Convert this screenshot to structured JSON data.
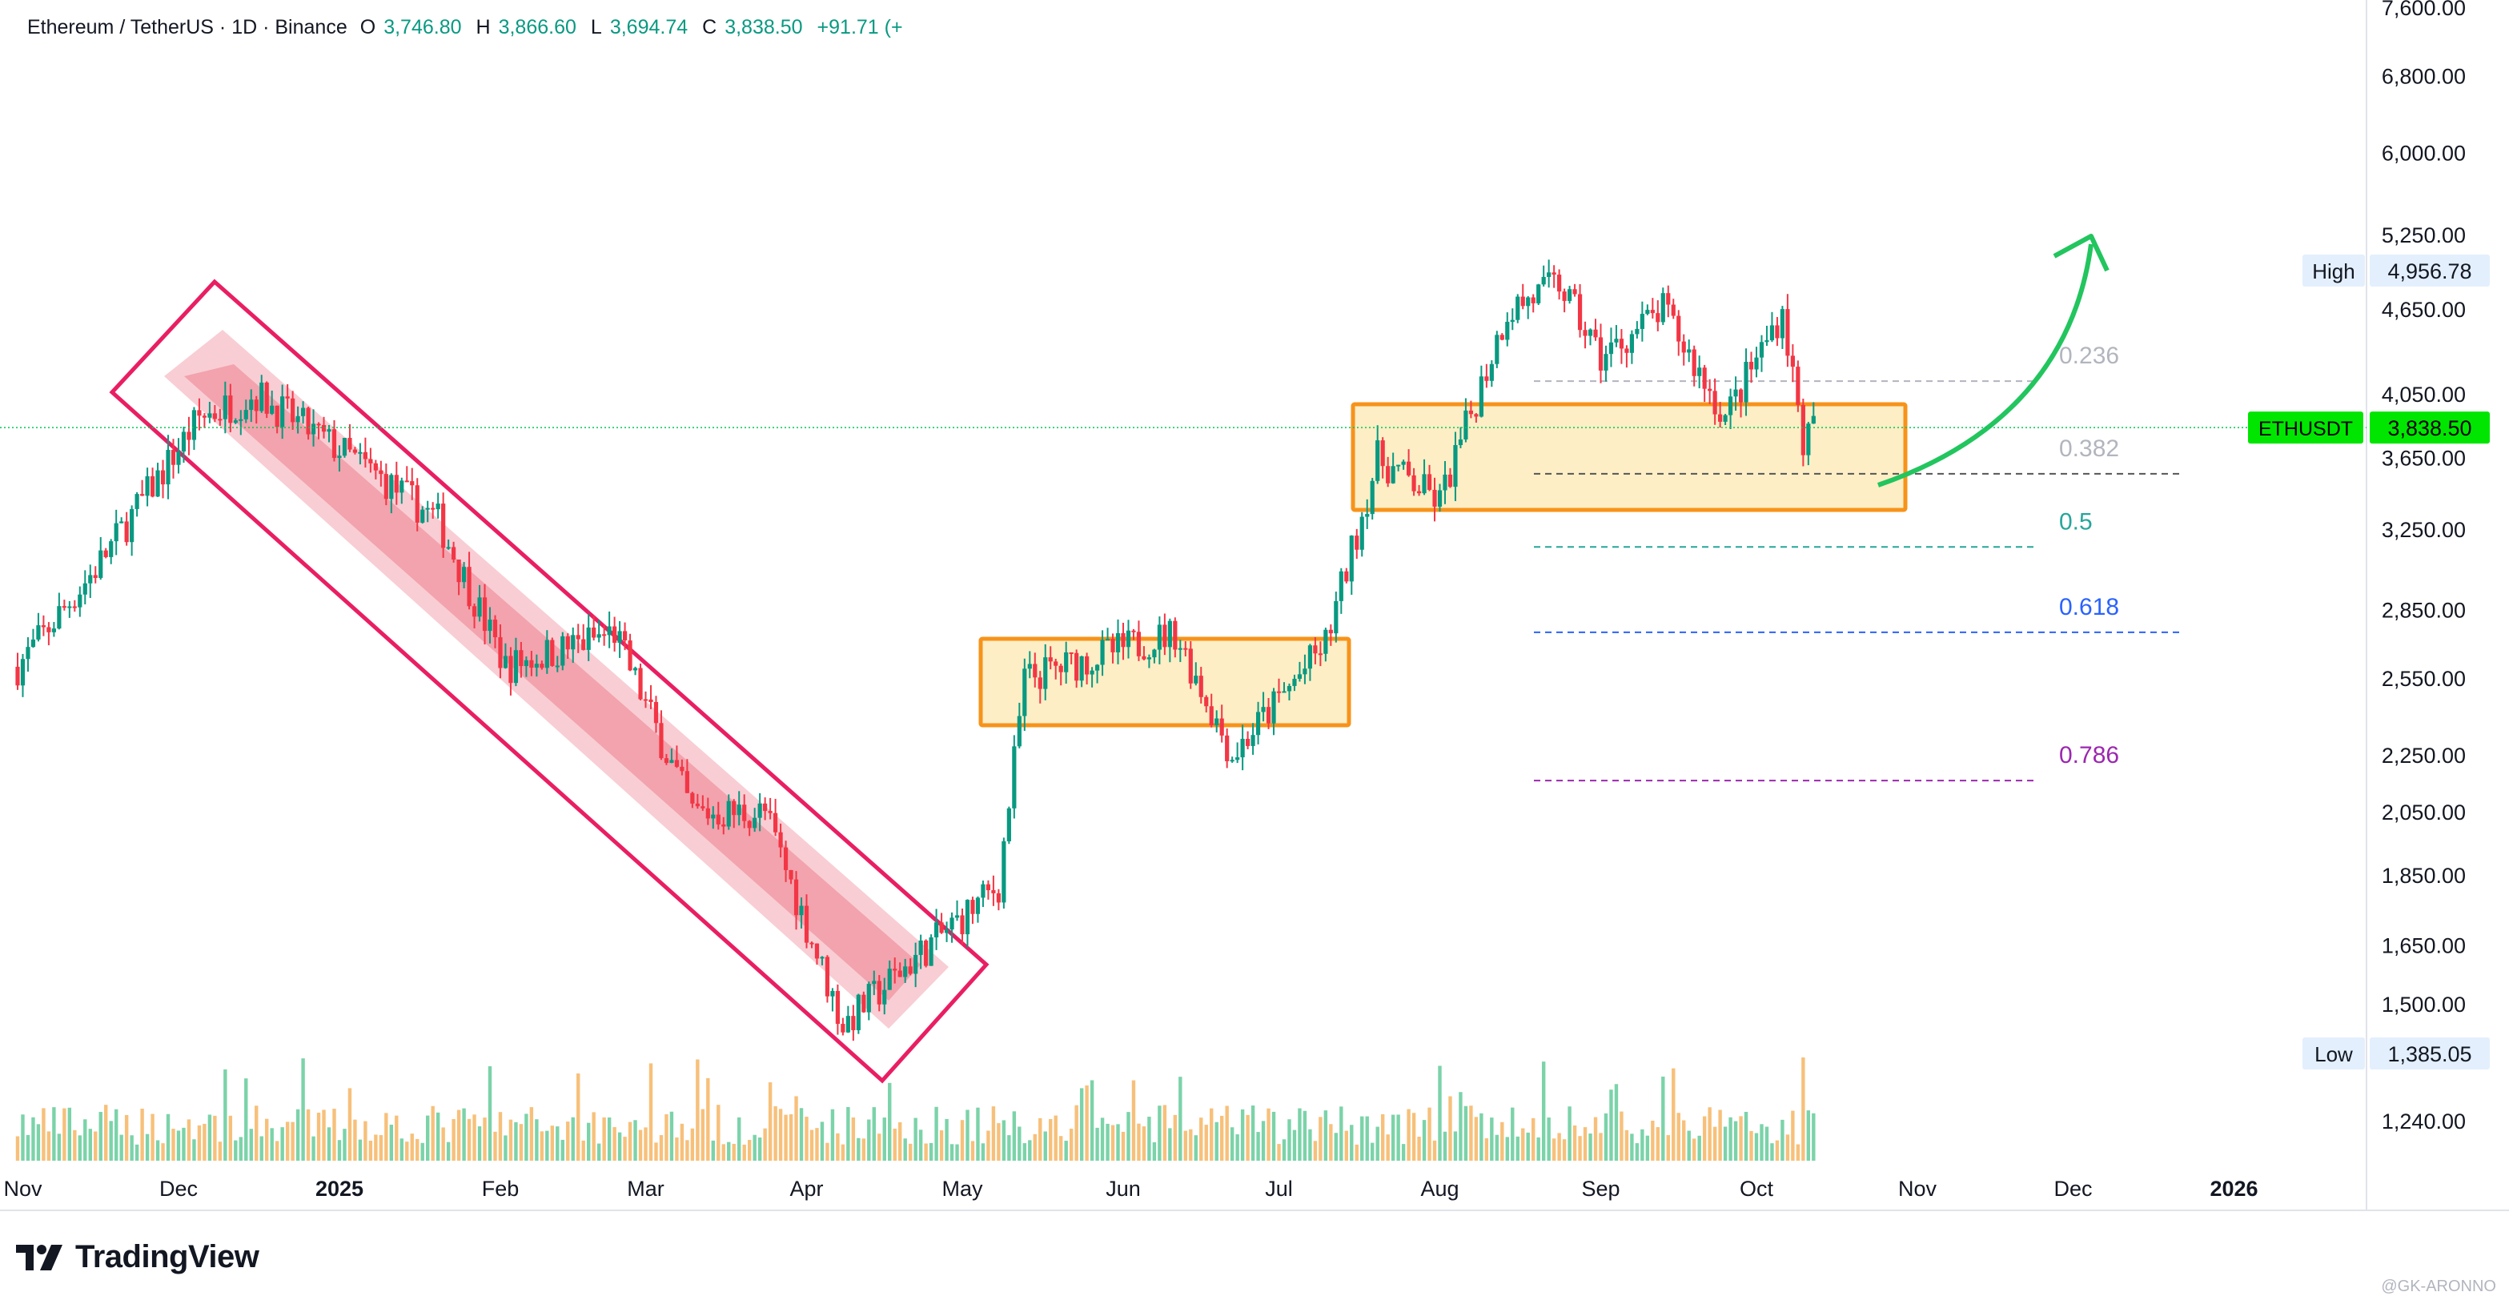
{
  "header": {
    "symbol": "Ethereum / TetherUS · 1D · Binance",
    "open_label": "O",
    "open": "3,746.80",
    "high_label": "H",
    "high": "3,866.60",
    "low_label": "L",
    "low": "3,694.74",
    "close_label": "C",
    "close": "3,838.50",
    "change": "+91.71 (+"
  },
  "brand": {
    "name": "TradingView"
  },
  "watermark": "@GK-ARONNO",
  "colors": {
    "up": "#089981",
    "down": "#f23645",
    "volume_up": "#7bd3a9",
    "volume_down": "#f7c07a",
    "orange": "#f7931a",
    "channel": "#e91e63",
    "arrow": "#22c55e",
    "last_price": "#00e600"
  },
  "chart_data": {
    "type": "candlestick",
    "symbol": "ETHUSDT",
    "price_axis": {
      "scale": "log",
      "ticks": [
        "7,600.00",
        "6,800.00",
        "6,000.00",
        "5,250.00",
        "4,650.00",
        "4,050.00",
        "3,650.00",
        "3,250.00",
        "2,850.00",
        "2,550.00",
        "2,250.00",
        "2,050.00",
        "1,850.00",
        "1,650.00",
        "1,500.00",
        "1,240.00"
      ]
    },
    "time_axis": {
      "ticks": [
        "Nov",
        "Dec",
        "2025",
        "Feb",
        "Mar",
        "Apr",
        "May",
        "Jun",
        "Jul",
        "Aug",
        "Sep",
        "Oct",
        "Nov",
        "Dec",
        "2026"
      ]
    },
    "markers": {
      "high": {
        "label": "High",
        "value": "4,956.78"
      },
      "low": {
        "label": "Low",
        "value": "1,385.05"
      },
      "last": {
        "label": "ETHUSDT",
        "value": "3,838.50"
      }
    },
    "fib_levels": [
      {
        "label": "0.236",
        "price": 4140,
        "color": "#b2b5be"
      },
      {
        "label": "0.382",
        "price": 3560,
        "color": "#b2b5be"
      },
      {
        "label": "0.5",
        "price": 3160,
        "color": "#26a69a"
      },
      {
        "label": "0.618",
        "price": 2750,
        "color": "#2962ff"
      },
      {
        "label": "0.786",
        "price": 2160,
        "color": "#9c27b0"
      }
    ],
    "anchors": [
      {
        "date": "2024-10-31",
        "price": 2600
      },
      {
        "date": "2024-11-15",
        "price": 3050
      },
      {
        "date": "2024-12-05",
        "price": 3900
      },
      {
        "date": "2024-12-16",
        "price": 4050
      },
      {
        "date": "2025-01-06",
        "price": 3600
      },
      {
        "date": "2025-01-20",
        "price": 3300
      },
      {
        "date": "2025-02-02",
        "price": 2600
      },
      {
        "date": "2025-02-23",
        "price": 2750
      },
      {
        "date": "2025-03-10",
        "price": 2050
      },
      {
        "date": "2025-03-24",
        "price": 2050
      },
      {
        "date": "2025-04-08",
        "price": 1450
      },
      {
        "date": "2025-04-22",
        "price": 1620
      },
      {
        "date": "2025-05-08",
        "price": 1820
      },
      {
        "date": "2025-05-13",
        "price": 2550
      },
      {
        "date": "2025-06-11",
        "price": 2750
      },
      {
        "date": "2025-06-22",
        "price": 2250
      },
      {
        "date": "2025-07-10",
        "price": 2700
      },
      {
        "date": "2025-07-20",
        "price": 3650
      },
      {
        "date": "2025-08-01",
        "price": 3400
      },
      {
        "date": "2025-08-14",
        "price": 4650
      },
      {
        "date": "2025-08-24",
        "price": 4850
      },
      {
        "date": "2025-09-01",
        "price": 4300
      },
      {
        "date": "2025-09-13",
        "price": 4650
      },
      {
        "date": "2025-09-25",
        "price": 3900
      },
      {
        "date": "2025-10-06",
        "price": 4650
      },
      {
        "date": "2025-10-10",
        "price": 3750
      },
      {
        "date": "2025-10-12",
        "price": 3838.5
      }
    ]
  }
}
